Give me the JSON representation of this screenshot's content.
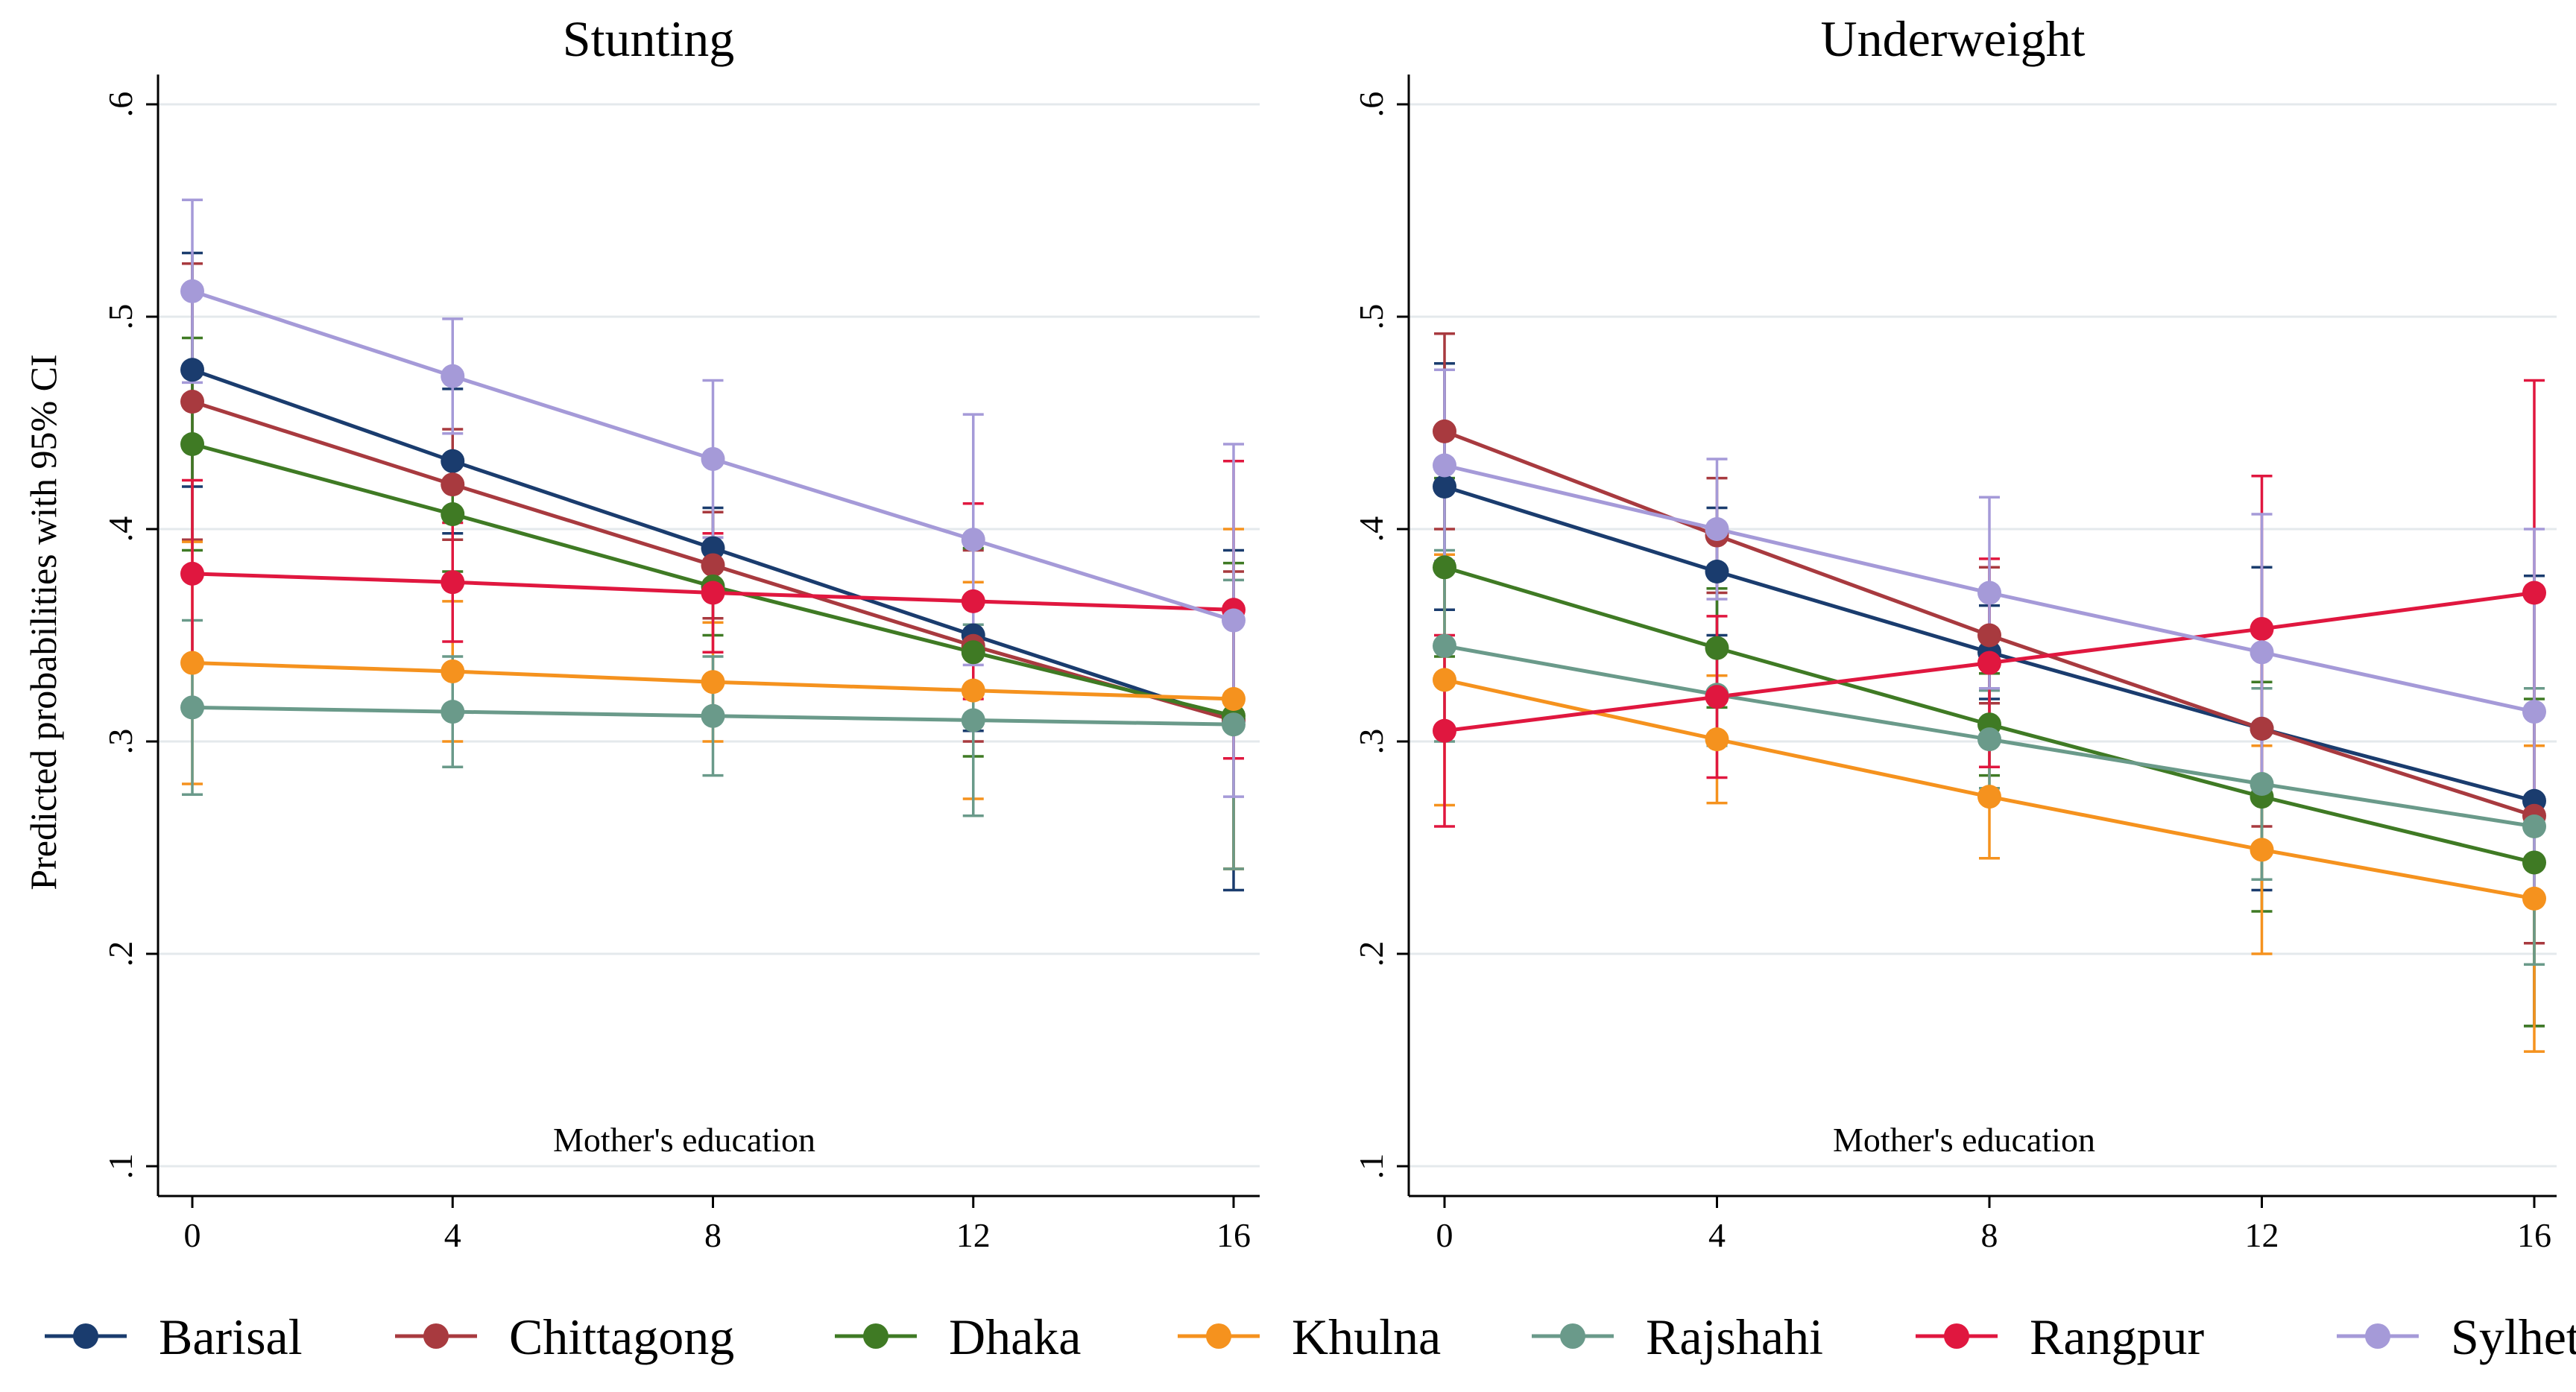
{
  "chart_data": {
    "type": "line",
    "shared": {
      "ylabel": "Predicted probabilities with 95% CI",
      "inner_xlabel": "Mother's education",
      "x": [
        0,
        4,
        8,
        12,
        16
      ],
      "xticks": [
        "0",
        "4",
        "8",
        "12",
        "16"
      ],
      "yticks": [
        ".1",
        ".2",
        ".3",
        ".4",
        ".5",
        ".6"
      ],
      "ylim": [
        0.1,
        0.6
      ],
      "grid": true,
      "legend_position": "bottom"
    },
    "colors": {
      "Barisal": "#1a3c6e",
      "Chittagong": "#a83a3f",
      "Dhaka": "#3f7a24",
      "Khulna": "#f5921e",
      "Rajshahi": "#6a9a8a",
      "Rangpur": "#e0173f",
      "Sylhet": "#a59ad8"
    },
    "legend": [
      "Barisal",
      "Chittagong",
      "Dhaka",
      "Khulna",
      "Rajshahi",
      "Rangpur",
      "Sylhet"
    ],
    "panels": [
      {
        "title": "Stunting",
        "series": [
          {
            "name": "Barisal",
            "values": [
              0.475,
              0.432,
              0.391,
              0.35,
              0.31
            ],
            "lower": [
              0.42,
              0.398,
              0.372,
              0.305,
              0.23
            ],
            "upper": [
              0.53,
              0.466,
              0.41,
              0.395,
              0.39
            ]
          },
          {
            "name": "Chittagong",
            "values": [
              0.46,
              0.421,
              0.383,
              0.345,
              0.31
            ],
            "lower": [
              0.395,
              0.395,
              0.358,
              0.3,
              0.24
            ],
            "upper": [
              0.525,
              0.447,
              0.408,
              0.39,
              0.38
            ]
          },
          {
            "name": "Dhaka",
            "values": [
              0.44,
              0.407,
              0.373,
              0.342,
              0.312
            ],
            "lower": [
              0.39,
              0.38,
              0.35,
              0.293,
              0.24
            ],
            "upper": [
              0.49,
              0.434,
              0.396,
              0.391,
              0.384
            ]
          },
          {
            "name": "Khulna",
            "values": [
              0.337,
              0.333,
              0.328,
              0.324,
              0.32
            ],
            "lower": [
              0.28,
              0.3,
              0.3,
              0.273,
              0.24
            ],
            "upper": [
              0.394,
              0.366,
              0.356,
              0.375,
              0.4
            ]
          },
          {
            "name": "Rajshahi",
            "values": [
              0.316,
              0.314,
              0.312,
              0.31,
              0.308
            ],
            "lower": [
              0.275,
              0.288,
              0.284,
              0.265,
              0.24
            ],
            "upper": [
              0.357,
              0.34,
              0.34,
              0.355,
              0.376
            ]
          },
          {
            "name": "Rangpur",
            "values": [
              0.379,
              0.375,
              0.37,
              0.366,
              0.362
            ],
            "lower": [
              0.335,
              0.347,
              0.342,
              0.32,
              0.292
            ],
            "upper": [
              0.423,
              0.403,
              0.398,
              0.412,
              0.432
            ]
          },
          {
            "name": "Sylhet",
            "values": [
              0.512,
              0.472,
              0.433,
              0.395,
              0.357
            ],
            "lower": [
              0.469,
              0.445,
              0.396,
              0.336,
              0.274
            ],
            "upper": [
              0.555,
              0.499,
              0.47,
              0.454,
              0.44
            ]
          }
        ]
      },
      {
        "title": "Underweight",
        "series": [
          {
            "name": "Barisal",
            "values": [
              0.42,
              0.38,
              0.342,
              0.306,
              0.272
            ],
            "lower": [
              0.362,
              0.35,
              0.32,
              0.23,
              0.166
            ],
            "upper": [
              0.478,
              0.41,
              0.364,
              0.382,
              0.378
            ]
          },
          {
            "name": "Chittagong",
            "values": [
              0.446,
              0.397,
              0.35,
              0.306,
              0.265
            ],
            "lower": [
              0.4,
              0.37,
              0.318,
              0.26,
              0.205
            ],
            "upper": [
              0.492,
              0.424,
              0.382,
              0.352,
              0.325
            ]
          },
          {
            "name": "Dhaka",
            "values": [
              0.382,
              0.344,
              0.308,
              0.274,
              0.243
            ],
            "lower": [
              0.34,
              0.316,
              0.284,
              0.22,
              0.166
            ],
            "upper": [
              0.424,
              0.372,
              0.332,
              0.328,
              0.32
            ]
          },
          {
            "name": "Khulna",
            "values": [
              0.329,
              0.301,
              0.274,
              0.249,
              0.226
            ],
            "lower": [
              0.27,
              0.271,
              0.245,
              0.2,
              0.154
            ],
            "upper": [
              0.388,
              0.331,
              0.303,
              0.298,
              0.298
            ]
          },
          {
            "name": "Rajshahi",
            "values": [
              0.345,
              0.322,
              0.301,
              0.28,
              0.26
            ],
            "lower": [
              0.3,
              0.298,
              0.278,
              0.235,
              0.195
            ],
            "upper": [
              0.39,
              0.346,
              0.324,
              0.325,
              0.325
            ]
          },
          {
            "name": "Rangpur",
            "values": [
              0.305,
              0.321,
              0.337,
              0.353,
              0.37
            ],
            "lower": [
              0.26,
              0.283,
              0.288,
              0.282,
              0.27
            ],
            "upper": [
              0.35,
              0.359,
              0.386,
              0.425,
              0.47
            ]
          },
          {
            "name": "Sylhet",
            "values": [
              0.43,
              0.4,
              0.37,
              0.342,
              0.314
            ],
            "lower": [
              0.385,
              0.367,
              0.325,
              0.277,
              0.228
            ],
            "upper": [
              0.475,
              0.433,
              0.415,
              0.407,
              0.4
            ]
          }
        ]
      }
    ]
  }
}
